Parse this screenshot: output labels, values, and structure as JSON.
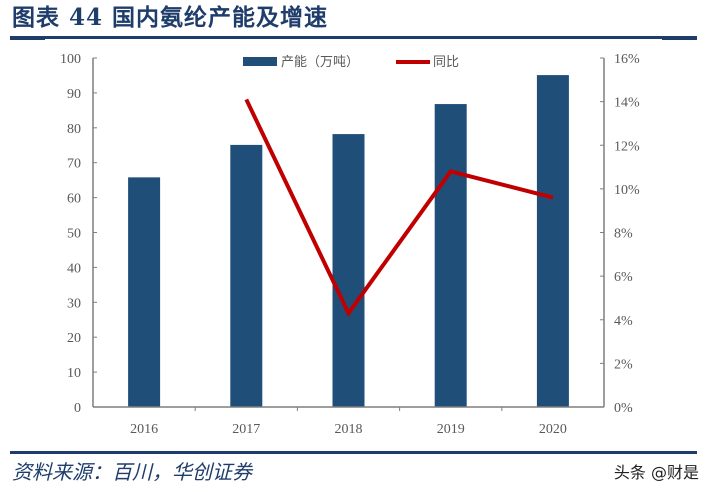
{
  "title": "图表 44  国内氨纶产能及增速",
  "source": "资料来源：百川，华创证券",
  "watermark": "头条 @财是",
  "colors": {
    "bar": "#1f4e79",
    "line": "#c00000",
    "axis": "#7f7f7f",
    "title": "#1f3d6b"
  },
  "chart_data": {
    "type": "bar+line",
    "title": "国内氨纶产能及增速",
    "categories": [
      "2016",
      "2017",
      "2018",
      "2019",
      "2020"
    ],
    "series": [
      {
        "name": "产能（万吨）",
        "type": "bar",
        "axis": "left",
        "values": [
          65.8,
          75.1,
          78.2,
          86.8,
          95.1
        ]
      },
      {
        "name": "同比",
        "type": "line",
        "axis": "right",
        "values": [
          null,
          14.1,
          4.3,
          10.8,
          9.6
        ]
      }
    ],
    "left_axis": {
      "ylim": [
        0,
        100
      ],
      "ticks": [
        "0",
        "10",
        "20",
        "30",
        "40",
        "50",
        "60",
        "70",
        "80",
        "90",
        "100"
      ]
    },
    "right_axis": {
      "ylim": [
        0,
        16
      ],
      "ticks": [
        "0%",
        "2%",
        "4%",
        "6%",
        "8%",
        "10%",
        "12%",
        "14%",
        "16%"
      ]
    },
    "legend": {
      "position": "top",
      "entries": [
        "产能（万吨）",
        "同比"
      ]
    },
    "grid": false
  }
}
